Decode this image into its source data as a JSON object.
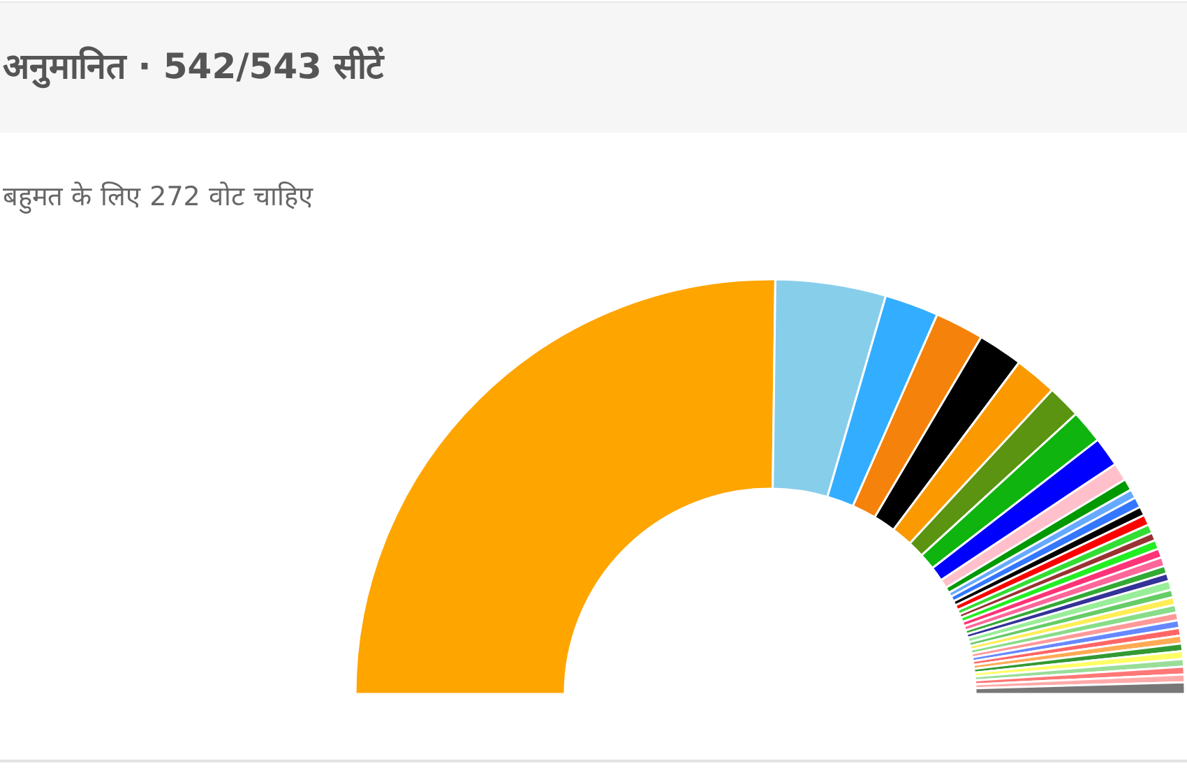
{
  "chart_data": {
    "type": "donut",
    "title": "अनुमानित · 542/543 सीटें",
    "subtitle": "बहुमत के लिए 272 वोट चाहिए",
    "categories": [
      null,
      null,
      null,
      null,
      null,
      null,
      null,
      null,
      null,
      null,
      null,
      null,
      null,
      null,
      null,
      null,
      null,
      null,
      null,
      null,
      null,
      null,
      null,
      null,
      null,
      null,
      null,
      null,
      null,
      null,
      null,
      null,
      null,
      null,
      null,
      null
    ],
    "values": [
      50.4,
      8.6,
      4.2,
      3.8,
      3.5,
      3.3,
      2.6,
      2.6,
      2.3,
      1.4,
      0.9,
      0.7,
      0.8,
      0.7,
      0.8,
      0.7,
      0.6,
      0.7,
      0.7,
      0.7,
      0.6,
      0.6,
      0.7,
      0.6,
      0.6,
      0.6,
      0.6,
      0.6,
      0.6,
      0.6,
      0.6,
      0.6,
      0.6,
      0.6,
      0.6,
      0.9
    ],
    "colors": [
      "#ffa500",
      "#87ceeb",
      "#33adff",
      "#f5820a",
      "#000000",
      "#fa9a00",
      "#5a9410",
      "#0fb40f",
      "#0000ff",
      "#ffc0cb",
      "#009900",
      "#66aaff",
      "#3377ff",
      "#000000",
      "#ff0000",
      "#33dd33",
      "#993333",
      "#22ee22",
      "#ff3377",
      "#ff6699",
      "#33aa33",
      "#333399",
      "#99ee99",
      "#66cc66",
      "#ffee55",
      "#88dd88",
      "#ff9999",
      "#6688ff",
      "#ff6666",
      "#ffaa55",
      "#339933",
      "#ffff66",
      "#99dd99",
      "#ff7777",
      "#ffaaaa",
      "#777777"
    ]
  }
}
